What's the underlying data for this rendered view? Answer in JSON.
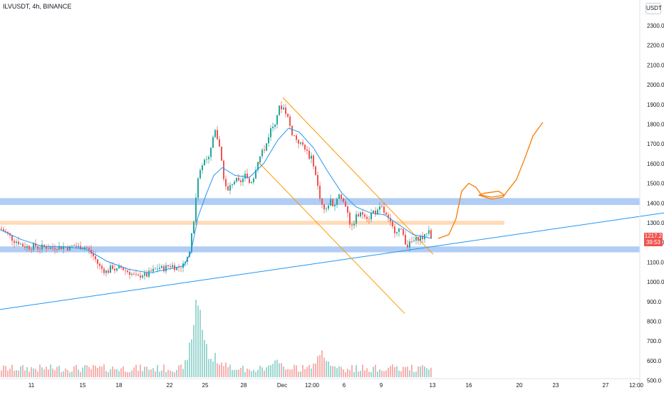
{
  "header": {
    "symbol_line": "ILVUSDT, 4h, BINANCE",
    "unit": "USDT"
  },
  "price_tag": {
    "price": "1217.2",
    "countdown": "39:53"
  },
  "colors": {
    "up": "#26a69a",
    "down": "#ef5350",
    "ma": "#2196f3",
    "channel": "#ff9800",
    "zone_blue": "#90b8f0",
    "zone_orange": "#ffcc99",
    "trendline": "#2196f3",
    "projection": "#f57c00"
  },
  "chart_data": {
    "type": "candlestick",
    "price_axis": {
      "ticks": [
        "2300.0",
        "2200.0",
        "2100.0",
        "2000.0",
        "1900.0",
        "1800.0",
        "1700.0",
        "1600.0",
        "1500.0",
        "1400.0",
        "1300.0",
        "1200.0",
        "1100.0",
        "1000.0",
        "900.0",
        "800.0",
        "700.0",
        "600.0",
        "500.0"
      ],
      "range": [
        500,
        2330
      ]
    },
    "time_axis": {
      "ticks": [
        "11",
        "15",
        "18",
        "22",
        "25",
        "28",
        "Dec",
        "12:00",
        "6",
        "9",
        "13",
        "16",
        "20",
        "23",
        "27",
        "12:00"
      ]
    },
    "close_path": [
      [
        0,
        1270
      ],
      [
        6,
        1255
      ],
      [
        12,
        1235
      ],
      [
        18,
        1210
      ],
      [
        24,
        1205
      ],
      [
        30,
        1185
      ],
      [
        36,
        1180
      ],
      [
        42,
        1175
      ],
      [
        48,
        1185
      ],
      [
        54,
        1170
      ],
      [
        60,
        1180
      ],
      [
        66,
        1175
      ],
      [
        72,
        1170
      ],
      [
        78,
        1180
      ],
      [
        84,
        1175
      ],
      [
        90,
        1180
      ],
      [
        96,
        1170
      ],
      [
        102,
        1185
      ],
      [
        108,
        1175
      ],
      [
        114,
        1180
      ],
      [
        120,
        1175
      ],
      [
        126,
        1150
      ],
      [
        132,
        1120
      ],
      [
        138,
        1080
      ],
      [
        144,
        1060
      ],
      [
        150,
        1050
      ],
      [
        156,
        1080
      ],
      [
        162,
        1055
      ],
      [
        168,
        1075
      ],
      [
        174,
        1060
      ],
      [
        180,
        1050
      ],
      [
        186,
        1035
      ],
      [
        192,
        1020
      ],
      [
        198,
        1040
      ],
      [
        204,
        1030
      ],
      [
        210,
        1050
      ],
      [
        216,
        1060
      ],
      [
        222,
        1075
      ],
      [
        228,
        1065
      ],
      [
        234,
        1080
      ],
      [
        240,
        1085
      ],
      [
        246,
        1070
      ],
      [
        252,
        1080
      ],
      [
        258,
        1090
      ],
      [
        264,
        1140
      ],
      [
        270,
        1280
      ],
      [
        276,
        1500
      ],
      [
        282,
        1600
      ],
      [
        288,
        1620
      ],
      [
        294,
        1650
      ],
      [
        300,
        1780
      ],
      [
        306,
        1700
      ],
      [
        312,
        1550
      ],
      [
        318,
        1450
      ],
      [
        324,
        1500
      ],
      [
        330,
        1520
      ],
      [
        336,
        1490
      ],
      [
        342,
        1550
      ],
      [
        348,
        1500
      ],
      [
        354,
        1520
      ],
      [
        360,
        1610
      ],
      [
        366,
        1650
      ],
      [
        372,
        1690
      ],
      [
        378,
        1770
      ],
      [
        384,
        1800
      ],
      [
        390,
        1880
      ],
      [
        396,
        1890
      ],
      [
        402,
        1850
      ],
      [
        408,
        1760
      ],
      [
        414,
        1730
      ],
      [
        420,
        1700
      ],
      [
        426,
        1690
      ],
      [
        432,
        1640
      ],
      [
        438,
        1620
      ],
      [
        444,
        1500
      ],
      [
        450,
        1400
      ],
      [
        456,
        1350
      ],
      [
        462,
        1420
      ],
      [
        468,
        1380
      ],
      [
        474,
        1450
      ],
      [
        480,
        1410
      ],
      [
        486,
        1380
      ],
      [
        492,
        1260
      ],
      [
        498,
        1330
      ],
      [
        504,
        1340
      ],
      [
        510,
        1350
      ],
      [
        516,
        1320
      ],
      [
        522,
        1360
      ],
      [
        528,
        1350
      ],
      [
        534,
        1380
      ],
      [
        540,
        1340
      ],
      [
        546,
        1300
      ],
      [
        552,
        1260
      ],
      [
        558,
        1270
      ],
      [
        564,
        1250
      ],
      [
        570,
        1180
      ],
      [
        576,
        1200
      ],
      [
        582,
        1210
      ],
      [
        588,
        1230
      ],
      [
        594,
        1220
      ],
      [
        600,
        1270
      ],
      [
        606,
        1217
      ]
    ],
    "moving_average": [
      [
        0,
        1265
      ],
      [
        30,
        1215
      ],
      [
        60,
        1180
      ],
      [
        90,
        1178
      ],
      [
        120,
        1168
      ],
      [
        150,
        1105
      ],
      [
        180,
        1065
      ],
      [
        210,
        1045
      ],
      [
        240,
        1068
      ],
      [
        258,
        1082
      ],
      [
        268,
        1150
      ],
      [
        278,
        1330
      ],
      [
        290,
        1450
      ],
      [
        300,
        1540
      ],
      [
        312,
        1580
      ],
      [
        330,
        1540
      ],
      [
        350,
        1530
      ],
      [
        370,
        1600
      ],
      [
        390,
        1720
      ],
      [
        405,
        1780
      ],
      [
        420,
        1760
      ],
      [
        440,
        1680
      ],
      [
        460,
        1560
      ],
      [
        480,
        1450
      ],
      [
        500,
        1380
      ],
      [
        520,
        1350
      ],
      [
        540,
        1340
      ],
      [
        560,
        1290
      ],
      [
        580,
        1240
      ],
      [
        600,
        1225
      ],
      [
        606,
        1220
      ]
    ],
    "volume_max": 3.0,
    "volume_spike_at": [
      [
        276,
        3.0
      ],
      [
        270,
        1.2
      ],
      [
        282,
        1.3
      ],
      [
        300,
        0.9
      ],
      [
        450,
        1.0
      ],
      [
        390,
        0.7
      ],
      [
        312,
        0.6
      ]
    ],
    "zones": [
      {
        "name": "resistance-zone",
        "low": 1390,
        "high": 1425,
        "color": "zone_blue"
      },
      {
        "name": "mid-zone",
        "low": 1290,
        "high": 1310,
        "color": "zone_orange"
      },
      {
        "name": "support-zone",
        "low": 1150,
        "high": 1180,
        "color": "zone_blue"
      }
    ],
    "trendline": {
      "from": [
        0,
        860
      ],
      "to": [
        932,
        1350
      ]
    },
    "channel_upper": {
      "from": [
        397,
        1935
      ],
      "to": [
        608,
        1140
      ]
    },
    "channel_lower": {
      "from": [
        362,
        1610
      ],
      "to": [
        568,
        840
      ]
    },
    "projection_path": [
      [
        615,
        1220
      ],
      [
        630,
        1240
      ],
      [
        640,
        1320
      ],
      [
        648,
        1460
      ],
      [
        658,
        1500
      ],
      [
        668,
        1480
      ],
      [
        676,
        1440
      ],
      [
        690,
        1430
      ],
      [
        708,
        1440
      ],
      [
        700,
        1460
      ],
      [
        680,
        1450
      ],
      [
        672,
        1440
      ],
      [
        690,
        1420
      ],
      [
        706,
        1430
      ],
      [
        712,
        1460
      ],
      [
        725,
        1520
      ],
      [
        738,
        1640
      ],
      [
        748,
        1740
      ],
      [
        762,
        1810
      ]
    ]
  }
}
